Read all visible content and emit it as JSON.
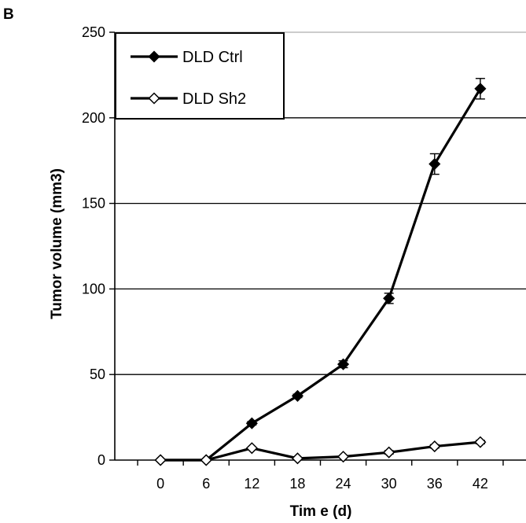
{
  "figure": {
    "panel_label": "B"
  },
  "chart_data": {
    "type": "line",
    "xlabel": "Tim e (d)",
    "ylabel": "Tumor volume (mm3)",
    "x": [
      0,
      6,
      12,
      18,
      24,
      30,
      36,
      42
    ],
    "x_tick_labels": [
      "0",
      "6",
      "12",
      "18",
      "24",
      "30",
      "36",
      "42"
    ],
    "ylim": [
      0,
      250
    ],
    "y_ticks": [
      0,
      50,
      100,
      150,
      200,
      250
    ],
    "y_tick_labels": [
      "0",
      "50",
      "100",
      "150",
      "200",
      "250"
    ],
    "grid": "horizontal",
    "legend_position": "top-left",
    "series": [
      {
        "name": "DLD Ctrl",
        "marker": "filled-diamond",
        "color": "#000000",
        "values": [
          0,
          0,
          21.5,
          37.5,
          56,
          94.5,
          173,
          217
        ],
        "errors": [
          0,
          0,
          1,
          1,
          2,
          3,
          6,
          6
        ]
      },
      {
        "name": "DLD Sh2",
        "marker": "open-diamond",
        "color": "#000000",
        "values": [
          0,
          0,
          7,
          1,
          2,
          4.5,
          8,
          10.5
        ],
        "errors": [
          0,
          0,
          0.5,
          0.3,
          0.5,
          1,
          1,
          1
        ]
      }
    ]
  }
}
